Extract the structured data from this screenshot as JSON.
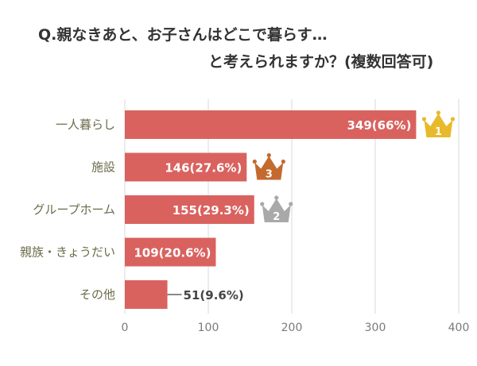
{
  "title_line1": "Q.親なきあと、お子さんはどこで暮らす…",
  "title_line2": "と考えられますか？(複数回答可)",
  "colors": {
    "bar": "#d9625f",
    "grid": "#d8d8d8",
    "label_inside": "#ffffff",
    "label_outside": "#444444",
    "gold": "#e8b92a",
    "silver": "#a9a9a9",
    "bronze": "#c46a2f"
  },
  "chart_data": {
    "type": "bar",
    "orientation": "horizontal",
    "categories": [
      "一人暮らし",
      "施設",
      "グループホーム",
      "親族・きょうだい",
      "その他"
    ],
    "values": [
      349,
      146,
      155,
      109,
      51
    ],
    "value_labels": [
      "349(66%)",
      "146(27.6%)",
      "155(29.3%)",
      "109(20.6%)",
      "51(9.6%)"
    ],
    "xlim": [
      0,
      400
    ],
    "xticks": [
      "0",
      "100",
      "200",
      "300",
      "400"
    ],
    "grid": true,
    "rank_badges": [
      {
        "category": "一人暮らし",
        "rank": "1",
        "icon": "gold-crown-icon"
      },
      {
        "category": "施設",
        "rank": "3",
        "icon": "bronze-crown-icon"
      },
      {
        "category": "グループホーム",
        "rank": "2",
        "icon": "silver-crown-icon"
      }
    ]
  }
}
